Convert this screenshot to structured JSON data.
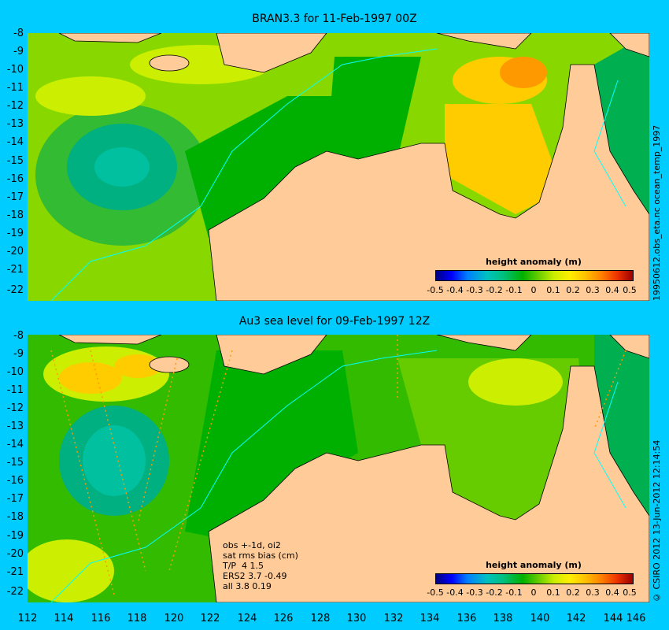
{
  "top_panel": {
    "title": "BRAN3.3 for 11-Feb-1997 00Z",
    "side_label": "19950612.obs_eta.nc   ocean_temp_1997",
    "colorbar_label": "height anomaly (m)"
  },
  "bottom_panel": {
    "title": "Au3 sea level  for 09-Feb-1997 12Z",
    "side_label": "© CSIRO 2012  13-Jun-2012 12:14:54",
    "colorbar_label": "height anomaly (m)",
    "stats": [
      "obs +-1d, oi2",
      "sat rms bias (cm)",
      "T/P  4 1.5",
      "ERS2 3.7 -0.49",
      "all 3.8 0.19"
    ]
  },
  "y_ticks": [
    "-8",
    "-9",
    "-10",
    "-11",
    "-12",
    "-13",
    "-14",
    "-15",
    "-16",
    "-17",
    "-18",
    "-19",
    "-20",
    "-21",
    "-22"
  ],
  "x_ticks": [
    "112",
    "114",
    "116",
    "118",
    "120",
    "122",
    "124",
    "126",
    "128",
    "130",
    "132",
    "134",
    "136",
    "138",
    "140",
    "142",
    "144",
    "146"
  ],
  "colorbar_ticks": [
    "-0.5",
    "-0.4",
    "-0.3",
    "-0.2",
    "-0.1",
    "0",
    "0.1",
    "0.2",
    "0.3",
    "0.4",
    "0.5"
  ],
  "colors": {
    "background": "#00ccff",
    "land": "#ffcc99",
    "neutral": "#66cc00",
    "positive": "#ffee00",
    "negative": "#00b080"
  }
}
